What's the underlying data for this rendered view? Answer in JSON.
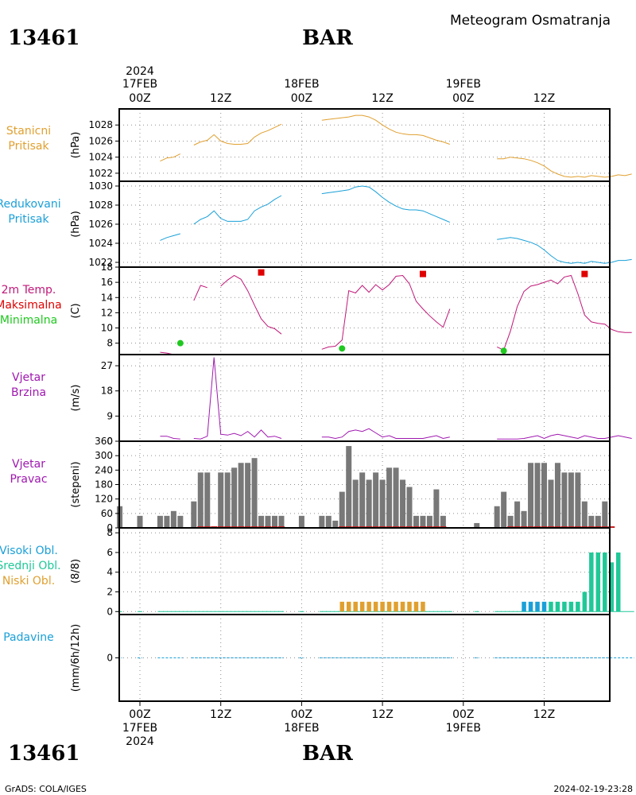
{
  "header": {
    "station_id": "13461",
    "station_name": "BAR",
    "subtitle": "Meteogram Osmatranja"
  },
  "top_axis": {
    "year": "2024",
    "dates": [
      {
        "label": "17FEB",
        "h": 0
      },
      {
        "label": "18FEB",
        "h": 24
      },
      {
        "label": "19FEB",
        "h": 48
      }
    ],
    "hour_labels": [
      {
        "label": "00Z",
        "h": 0
      },
      {
        "label": "12Z",
        "h": 12
      },
      {
        "label": "00Z",
        "h": 24
      },
      {
        "label": "12Z",
        "h": 36
      },
      {
        "label": "00Z",
        "h": 48
      },
      {
        "label": "12Z",
        "h": 60
      }
    ]
  },
  "bottom_axis": {
    "year": "2024",
    "dates": [
      {
        "label": "17FEB",
        "h": 0
      },
      {
        "label": "18FEB",
        "h": 24
      },
      {
        "label": "19FEB",
        "h": 48
      }
    ],
    "hour_labels": [
      {
        "label": "00Z",
        "h": 0
      },
      {
        "label": "12Z",
        "h": 12
      },
      {
        "label": "00Z",
        "h": 24
      },
      {
        "label": "12Z",
        "h": 36
      },
      {
        "label": "00Z",
        "h": 48
      },
      {
        "label": "12Z",
        "h": 60
      }
    ]
  },
  "footer": {
    "credit": "GrADS: COLA/IGES",
    "timestamp": "2024-02-19-23:28"
  },
  "colors": {
    "station_pressure": "#e0a030",
    "reduced_pressure": "#1aa0d8",
    "temperature": "#c01878",
    "tmax": "#e00000",
    "tmin": "#20c820",
    "wind_speed": "#a018b0",
    "wind_dir_bar": "#787878",
    "wind_dir_base": "#c82020",
    "high_cloud": "#1aa0d8",
    "mid_cloud": "#20c898",
    "low_cloud": "#e0a030",
    "precip": "#1aa0d8",
    "grid": "#909090"
  },
  "chart_data": [
    {
      "id": "station_pressure",
      "type": "line",
      "label_lines": [
        "Stanicni",
        "Pritisak"
      ],
      "unit": "(hPa)",
      "ylim": [
        1021,
        1030
      ],
      "ticks": [
        1022,
        1024,
        1026,
        1028
      ],
      "x_unit": "hours since 17FEB 00Z",
      "series": [
        {
          "x": [
            3,
            4,
            5,
            6
          ],
          "y": [
            1023.5,
            1023.9,
            1024.0,
            1024.4
          ]
        },
        {
          "x": [
            8,
            9,
            10,
            11,
            12,
            13,
            14,
            15,
            16,
            17,
            18,
            19,
            20,
            21
          ],
          "y": [
            1025.5,
            1025.9,
            1026.1,
            1026.8,
            1026.0,
            1025.7,
            1025.6,
            1025.6,
            1025.7,
            1026.5,
            1027.0,
            1027.3,
            1027.7,
            1028.1
          ]
        },
        {
          "x": [
            27,
            28,
            29,
            30,
            31,
            32,
            33,
            34,
            35,
            36,
            37,
            38,
            39,
            40,
            41,
            42,
            43,
            44,
            45,
            46
          ],
          "y": [
            1028.6,
            1028.7,
            1028.8,
            1028.9,
            1029.0,
            1029.2,
            1029.2,
            1029.0,
            1028.6,
            1028.0,
            1027.5,
            1027.1,
            1026.9,
            1026.8,
            1026.8,
            1026.7,
            1026.4,
            1026.1,
            1025.9,
            1025.6
          ]
        },
        {
          "x": [
            53,
            54,
            55,
            56,
            57,
            58,
            59,
            60,
            61,
            62,
            63,
            64,
            65,
            66,
            67,
            68,
            69,
            70,
            71,
            72,
            73
          ],
          "y": [
            1023.8,
            1023.8,
            1024.0,
            1023.9,
            1023.8,
            1023.6,
            1023.3,
            1022.9,
            1022.3,
            1021.9,
            1021.6,
            1021.5,
            1021.6,
            1021.5,
            1021.7,
            1021.6,
            1021.5,
            1021.6,
            1021.8,
            1021.7,
            1021.9
          ]
        }
      ]
    },
    {
      "id": "reduced_pressure",
      "type": "line",
      "label_lines": [
        "Redukovani",
        "Pritisak"
      ],
      "unit": "(hPa)",
      "ylim": [
        1021.5,
        1030.5
      ],
      "ticks": [
        1022,
        1024,
        1026,
        1028,
        1030
      ],
      "series": [
        {
          "x": [
            3,
            4,
            5,
            6
          ],
          "y": [
            1024.3,
            1024.6,
            1024.8,
            1025.0
          ]
        },
        {
          "x": [
            8,
            9,
            10,
            11,
            12,
            13,
            14,
            15,
            16,
            17,
            18,
            19,
            20,
            21
          ],
          "y": [
            1026.0,
            1026.5,
            1026.8,
            1027.4,
            1026.6,
            1026.3,
            1026.3,
            1026.3,
            1026.5,
            1027.4,
            1027.8,
            1028.1,
            1028.6,
            1029.0
          ]
        },
        {
          "x": [
            27,
            28,
            29,
            30,
            31,
            32,
            33,
            34,
            35,
            36,
            37,
            38,
            39,
            40,
            41,
            42,
            43,
            44,
            45,
            46
          ],
          "y": [
            1029.2,
            1029.3,
            1029.4,
            1029.5,
            1029.6,
            1029.9,
            1030.0,
            1029.9,
            1029.4,
            1028.8,
            1028.3,
            1027.9,
            1027.6,
            1027.5,
            1027.5,
            1027.4,
            1027.1,
            1026.8,
            1026.5,
            1026.2
          ]
        },
        {
          "x": [
            53,
            54,
            55,
            56,
            57,
            58,
            59,
            60,
            61,
            62,
            63,
            64,
            65,
            66,
            67,
            68,
            69,
            70,
            71,
            72,
            73
          ],
          "y": [
            1024.4,
            1024.5,
            1024.6,
            1024.5,
            1024.3,
            1024.1,
            1023.8,
            1023.3,
            1022.7,
            1022.2,
            1022.0,
            1021.9,
            1022.0,
            1021.9,
            1022.1,
            1022.0,
            1021.9,
            1022.0,
            1022.2,
            1022.2,
            1022.3
          ]
        }
      ]
    },
    {
      "id": "temperature",
      "type": "line",
      "label_lines": [
        "2m Temp.",
        "Maksimalna",
        "Minimalna"
      ],
      "unit": "(C)",
      "ylim": [
        6.5,
        18
      ],
      "ticks": [
        8,
        10,
        12,
        14,
        16,
        18
      ],
      "series": [
        {
          "x": [
            3,
            4,
            5
          ],
          "y": [
            6.8,
            6.7,
            6.5
          ]
        },
        {
          "x": [
            8,
            9,
            10
          ],
          "y": [
            13.6,
            15.6,
            15.3
          ]
        },
        {
          "x": [
            12,
            13,
            14,
            15,
            16,
            17,
            18,
            19,
            20,
            21
          ],
          "y": [
            15.5,
            16.3,
            16.9,
            16.4,
            14.9,
            13.0,
            11.2,
            10.2,
            9.9,
            9.2
          ]
        },
        {
          "x": [
            27,
            28,
            29,
            30,
            31,
            32,
            33,
            34,
            35,
            36,
            37,
            38,
            39,
            40,
            41,
            42,
            43,
            44,
            45,
            46
          ],
          "y": [
            7.2,
            7.5,
            7.6,
            8.4,
            14.9,
            14.6,
            15.6,
            14.7,
            15.7,
            15.0,
            15.7,
            16.8,
            16.9,
            15.8,
            13.5,
            12.5,
            11.6,
            10.8,
            10.1,
            12.5
          ]
        },
        {
          "x": [
            53,
            54,
            55,
            56,
            57,
            58,
            59,
            60,
            61,
            62,
            63,
            64,
            65,
            66,
            67,
            68,
            69,
            70,
            71,
            72,
            73
          ],
          "y": [
            7.5,
            7.1,
            9.6,
            12.8,
            14.8,
            15.5,
            15.7,
            16.0,
            16.3,
            15.8,
            16.7,
            16.9,
            14.5,
            11.7,
            10.8,
            10.6,
            10.5,
            9.8,
            9.5,
            9.4,
            9.4
          ]
        }
      ],
      "tmax_points": [
        {
          "x": 18,
          "y": 17.3
        },
        {
          "x": 42,
          "y": 17.1
        },
        {
          "x": 66,
          "y": 17.1
        }
      ],
      "tmin_points": [
        {
          "x": 6,
          "y": 8.0
        },
        {
          "x": 30,
          "y": 7.3
        },
        {
          "x": 54,
          "y": 7.0
        }
      ]
    },
    {
      "id": "wind_speed",
      "type": "line",
      "label_lines": [
        "Vjetar",
        "Brzina"
      ],
      "unit": "(m/s)",
      "ylim": [
        0,
        31
      ],
      "ticks": [
        0,
        9,
        18,
        27
      ],
      "series": [
        {
          "x": [
            3,
            4,
            5,
            6
          ],
          "y": [
            1.8,
            1.8,
            1.0,
            0.8
          ]
        },
        {
          "x": [
            8,
            9,
            10,
            11,
            12,
            13,
            14,
            15,
            16,
            17,
            18,
            19,
            20,
            21
          ],
          "y": [
            1.0,
            0.8,
            1.8,
            30.0,
            2.5,
            2.2,
            2.8,
            2.0,
            3.5,
            1.5,
            4.0,
            1.5,
            1.8,
            1.0
          ]
        },
        {
          "x": [
            27,
            28,
            29,
            30,
            31,
            32,
            33,
            34,
            35,
            36,
            37,
            38,
            39,
            40,
            41,
            42,
            43,
            44,
            45,
            46
          ],
          "y": [
            1.5,
            1.5,
            1.0,
            1.5,
            3.5,
            4.0,
            3.5,
            4.5,
            3.0,
            1.5,
            2.0,
            1.0,
            1.0,
            1.0,
            1.0,
            1.0,
            1.5,
            2.0,
            1.0,
            1.5
          ]
        },
        {
          "x": [
            53,
            54,
            55,
            56,
            57,
            58,
            59,
            60,
            61,
            62,
            63,
            64,
            65,
            66,
            67,
            68,
            69,
            70,
            71,
            72,
            73
          ],
          "y": [
            0.8,
            0.8,
            0.8,
            0.8,
            1.0,
            1.5,
            2.0,
            1.0,
            2.0,
            2.5,
            2.0,
            1.5,
            1.0,
            2.0,
            1.5,
            1.0,
            1.0,
            1.5,
            2.0,
            1.5,
            1.0
          ]
        }
      ]
    },
    {
      "id": "wind_direction",
      "type": "bar",
      "label_lines": [
        "Vjetar",
        "Pravac"
      ],
      "unit": "(stepeni)",
      "ylim": [
        0,
        360
      ],
      "ticks": [
        0,
        60,
        120,
        180,
        240,
        300,
        360
      ],
      "x": [
        -3,
        0,
        3,
        4,
        5,
        6,
        8,
        9,
        10,
        11,
        12,
        13,
        14,
        15,
        16,
        17,
        18,
        19,
        20,
        21,
        24,
        27,
        28,
        29,
        30,
        31,
        32,
        33,
        34,
        35,
        36,
        37,
        38,
        39,
        40,
        41,
        42,
        43,
        44,
        45,
        46,
        50,
        53,
        54,
        55,
        56,
        57,
        58,
        59,
        60,
        61,
        62,
        63,
        64,
        65,
        66,
        67,
        68,
        69,
        70,
        71,
        72,
        73
      ],
      "values": [
        90,
        50,
        50,
        50,
        70,
        50,
        110,
        230,
        230,
        0,
        230,
        230,
        250,
        270,
        270,
        290,
        50,
        50,
        50,
        50,
        50,
        50,
        50,
        30,
        150,
        340,
        200,
        230,
        200,
        230,
        200,
        250,
        250,
        200,
        170,
        50,
        50,
        50,
        160,
        50,
        0,
        20,
        90,
        150,
        50,
        110,
        70,
        270,
        270,
        270,
        200,
        270,
        230,
        230,
        230,
        110,
        50,
        50,
        110,
        0,
        0,
        0,
        0
      ],
      "calm_base_x": [
        9,
        10,
        11,
        12,
        13,
        14,
        15,
        16,
        17,
        18,
        19,
        20,
        21,
        30,
        31,
        32,
        33,
        34,
        35,
        36,
        37,
        38,
        39,
        40,
        41,
        42,
        43,
        44,
        45,
        55,
        56,
        57,
        58,
        59,
        60,
        61,
        62,
        63,
        64,
        65,
        66,
        67,
        68,
        69,
        70
      ]
    },
    {
      "id": "clouds",
      "type": "bar",
      "label_lines": [
        "Visoki Obl.",
        "Srednji Obl.",
        "Niski Obl."
      ],
      "unit": "(8/8)",
      "ylim": [
        -0.3,
        8.5
      ],
      "ticks": [
        0,
        2,
        4,
        6,
        8
      ],
      "low": {
        "x": [
          30,
          31,
          32,
          33,
          34,
          35,
          36,
          37,
          38,
          39,
          40,
          41,
          42
        ],
        "values": [
          1,
          1,
          1,
          1,
          1,
          1,
          1,
          1,
          1,
          1,
          1,
          1,
          1
        ]
      },
      "high": {
        "x": [
          57,
          58,
          59,
          60
        ],
        "values": [
          1,
          1,
          1,
          1
        ]
      },
      "mid": {
        "x": [
          61,
          62,
          63,
          64,
          65,
          66,
          67,
          68,
          69,
          70,
          71
        ],
        "values": [
          1,
          1,
          1,
          1,
          1,
          2,
          6,
          6,
          6,
          5,
          6
        ]
      }
    },
    {
      "id": "precipitation",
      "type": "line",
      "label_lines": [
        "Padavine"
      ],
      "unit": "(mm/6h/12h)",
      "ylim": [
        -3.5,
        3.5
      ],
      "ticks": [
        0
      ],
      "segments": [
        [
          -3,
          -3
        ],
        [
          0,
          0
        ],
        [
          3,
          6
        ],
        [
          8,
          21
        ],
        [
          24,
          24
        ],
        [
          27,
          46
        ],
        [
          50,
          50
        ],
        [
          53,
          73
        ]
      ]
    }
  ]
}
